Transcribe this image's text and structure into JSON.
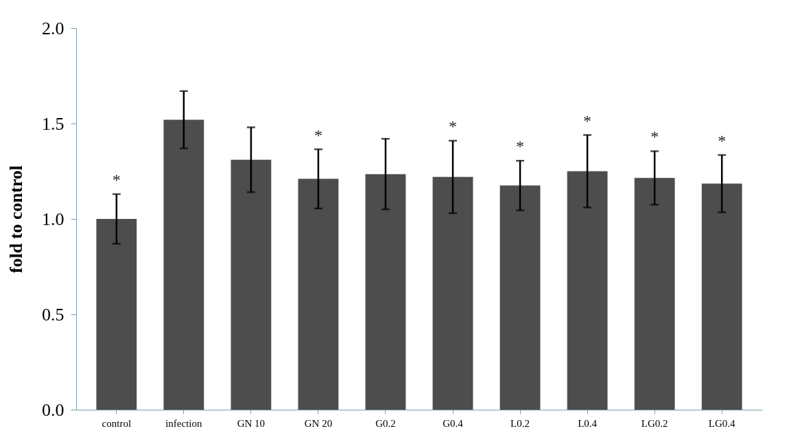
{
  "chart_data": {
    "type": "bar",
    "ylabel": "fold to control",
    "categories": [
      "control",
      "infection",
      "GN 10",
      "GN 20",
      "G0.2",
      "G0.4",
      "L0.2",
      "L0.4",
      "LG0.2",
      "LG0.4"
    ],
    "values": [
      1.0,
      1.52,
      1.31,
      1.21,
      1.235,
      1.22,
      1.175,
      1.25,
      1.215,
      1.185
    ],
    "errors": [
      0.13,
      0.15,
      0.17,
      0.155,
      0.185,
      0.19,
      0.13,
      0.19,
      0.14,
      0.15
    ],
    "color": "#4d4d4d",
    "ylim": [
      0,
      2
    ],
    "yticks": [
      {
        "value": 0,
        "label": "0.0"
      },
      {
        "value": 0.5,
        "label": "0.5"
      },
      {
        "value": 1,
        "label": "1.0"
      },
      {
        "value": 1.5,
        "label": "1.5"
      },
      {
        "value": 2,
        "label": "2.0"
      }
    ],
    "grid": false,
    "value_labels": [
      "*",
      null,
      null,
      "*",
      null,
      "*",
      "*",
      "*",
      "*",
      "*"
    ]
  }
}
